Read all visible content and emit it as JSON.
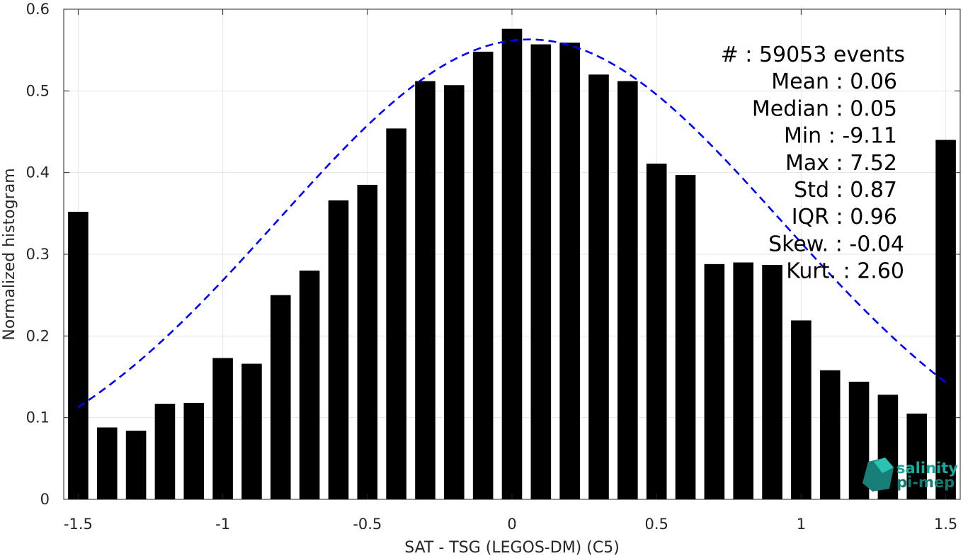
{
  "chart_data": {
    "type": "bar",
    "xlabel": "SAT - TSG (LEGOS-DM) (C5)",
    "ylabel": "Normalized histogram",
    "xlim": [
      -1.55,
      1.55
    ],
    "ylim": [
      0,
      0.6
    ],
    "grid": true,
    "x_ticks": [
      -1.5,
      -1,
      -0.5,
      0,
      0.5,
      1,
      1.5
    ],
    "x_tick_labels": [
      "-1.5",
      "-1",
      "-0.5",
      "0",
      "0.5",
      "1",
      "1.5"
    ],
    "y_ticks": [
      0,
      0.1,
      0.2,
      0.3,
      0.4,
      0.5,
      0.6
    ],
    "y_tick_labels": [
      "0",
      "0.1",
      "0.2",
      "0.3",
      "0.4",
      "0.5",
      "0.6"
    ],
    "bar_color": "#000000",
    "bar_centers": [
      -1.5,
      -1.4,
      -1.3,
      -1.2,
      -1.1,
      -1.0,
      -0.9,
      -0.8,
      -0.7,
      -0.6,
      -0.5,
      -0.4,
      -0.3,
      -0.2,
      -0.1,
      0.0,
      0.1,
      0.2,
      0.3,
      0.4,
      0.5,
      0.6,
      0.7,
      0.8,
      0.9,
      1.0,
      1.1,
      1.2,
      1.3,
      1.4,
      1.5
    ],
    "values": [
      0.352,
      0.088,
      0.084,
      0.117,
      0.118,
      0.173,
      0.166,
      0.25,
      0.28,
      0.366,
      0.385,
      0.454,
      0.512,
      0.507,
      0.548,
      0.576,
      0.557,
      0.559,
      0.52,
      0.512,
      0.411,
      0.397,
      0.288,
      0.29,
      0.287,
      0.219,
      0.158,
      0.144,
      0.128,
      0.105,
      0.44
    ],
    "fit": {
      "style": "dashed",
      "color": "#0000ff",
      "mean": 0.06,
      "std": 0.87,
      "x_range": [
        -1.5,
        1.5
      ]
    },
    "stats": [
      "#  : 59053 events",
      "Mean : 0.06",
      "Median : 0.05",
      "Min : -9.11",
      "Max : 7.52",
      "Std : 0.87",
      "IQR : 0.96",
      "Skew. : -0.04",
      "Kurt. : 2.60"
    ]
  },
  "logo": {
    "line1": "salinity",
    "line2": "pi-mep",
    "color": "#1aa9a0"
  }
}
